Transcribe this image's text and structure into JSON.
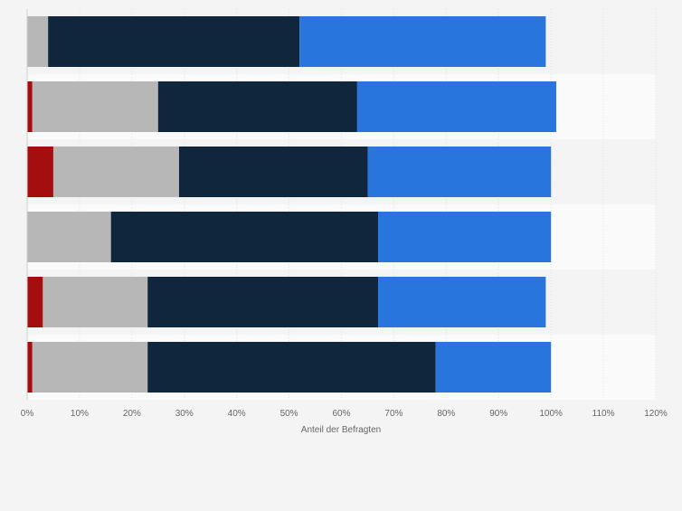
{
  "chart_data": {
    "type": "bar",
    "orientation": "horizontal",
    "stacked": true,
    "title": "",
    "xlabel": "Anteil der Befragten",
    "ylabel": "",
    "xlim": [
      0,
      120
    ],
    "xticks": [
      "0%",
      "10%",
      "20%",
      "30%",
      "40%",
      "50%",
      "60%",
      "70%",
      "80%",
      "90%",
      "100%",
      "110%",
      "120%"
    ],
    "grid": true,
    "legend": "none",
    "categories": [
      "",
      "",
      "",
      "",
      "",
      ""
    ],
    "series": [
      {
        "color": "#a50e0e",
        "values": [
          0,
          1,
          5,
          0,
          3,
          1
        ]
      },
      {
        "color": "#b7b7b7",
        "values": [
          4,
          24,
          24,
          16,
          20,
          22
        ]
      },
      {
        "color": "#10263d",
        "values": [
          48,
          38,
          36,
          51,
          44,
          55
        ]
      },
      {
        "color": "#2876dd",
        "values": [
          47,
          38,
          35,
          33,
          32,
          22
        ]
      }
    ]
  }
}
